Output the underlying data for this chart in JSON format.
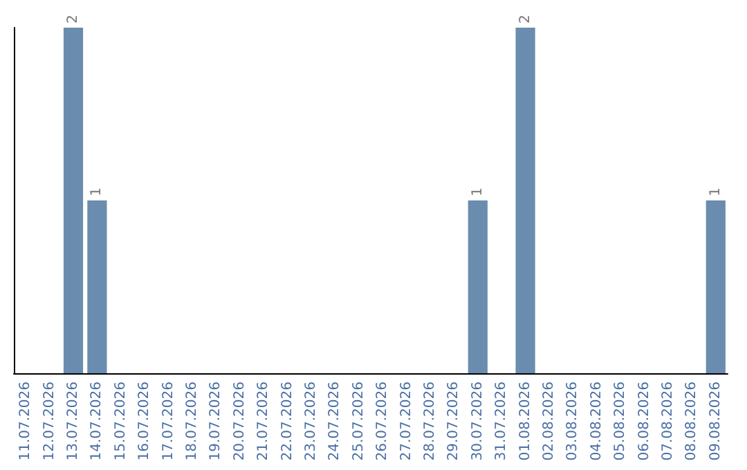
{
  "chart_data": {
    "type": "bar",
    "categories": [
      "11.07.2026",
      "12.07.2026",
      "13.07.2026",
      "14.07.2026",
      "15.07.2026",
      "16.07.2026",
      "17.07.2026",
      "18.07.2026",
      "19.07.2026",
      "20.07.2026",
      "21.07.2026",
      "22.07.2026",
      "23.07.2026",
      "24.07.2026",
      "25.07.2026",
      "26.07.2026",
      "27.07.2026",
      "28.07.2026",
      "29.07.2026",
      "30.07.2026",
      "31.07.2026",
      "01.08.2026",
      "02.08.2026",
      "03.08.2026",
      "04.08.2026",
      "05.08.2026",
      "06.08.2026",
      "07.08.2026",
      "08.08.2026",
      "09.08.2026"
    ],
    "values": [
      0,
      0,
      2,
      1,
      0,
      0,
      0,
      0,
      0,
      0,
      0,
      0,
      0,
      0,
      0,
      0,
      0,
      0,
      0,
      1,
      0,
      2,
      0,
      0,
      0,
      0,
      0,
      0,
      0,
      1
    ],
    "value_labels": [
      null,
      null,
      "2",
      "1",
      null,
      null,
      null,
      null,
      null,
      null,
      null,
      null,
      null,
      null,
      null,
      null,
      null,
      null,
      null,
      "1",
      null,
      "2",
      null,
      null,
      null,
      null,
      null,
      null,
      null,
      "1"
    ],
    "color": "#6a8caf",
    "ylim": [
      0,
      2
    ],
    "tick_labels": "x"
  }
}
